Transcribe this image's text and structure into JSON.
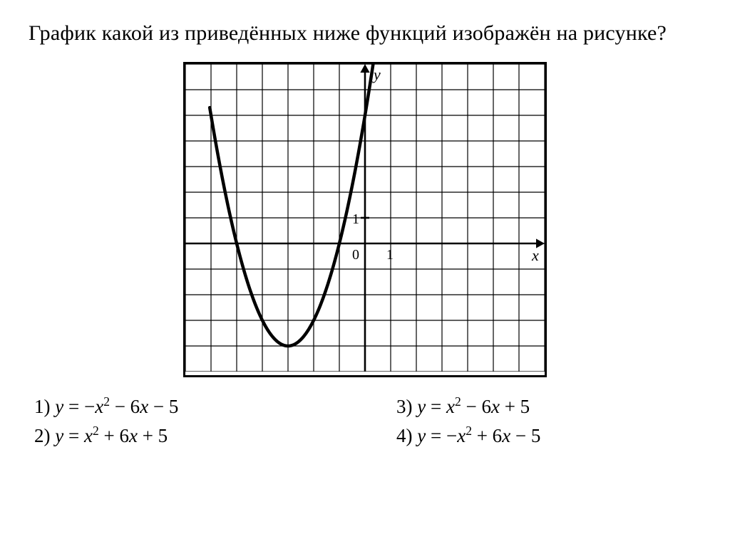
{
  "question": "График какой из приведённых ниже функций изобра­жён на рисунке?",
  "chart": {
    "type": "parabola-on-grid",
    "grid": {
      "cols": 14,
      "rows": 12,
      "cell": 36,
      "origin_col": 7,
      "origin_row": 7,
      "line_color": "#000000",
      "line_width": 1.2,
      "border_color": "#000000",
      "border_width": 3,
      "background": "#ffffff"
    },
    "axes": {
      "color": "#000000",
      "width": 2.6,
      "arrow_size": 12,
      "x_label": "x",
      "y_label": "y",
      "label_fontsize": 22,
      "tick_label_1": "1",
      "tick_label_0": "0",
      "tick_fontsize": 20
    },
    "curve": {
      "color": "#000000",
      "width": 4.5,
      "chart_xmin": -6.05,
      "chart_xmax": 0.85,
      "coef_a": 1,
      "coef_b": 6,
      "coef_c": 5
    }
  },
  "answers": {
    "a1": {
      "n": "1)",
      "eq": "y = −x² − 6x − 5"
    },
    "a2": {
      "n": "2)",
      "eq": "y = x² + 6x + 5"
    },
    "a3": {
      "n": "3)",
      "eq": "y = x² − 6x + 5"
    },
    "a4": {
      "n": "4)",
      "eq": "y = −x² + 6x − 5"
    }
  }
}
